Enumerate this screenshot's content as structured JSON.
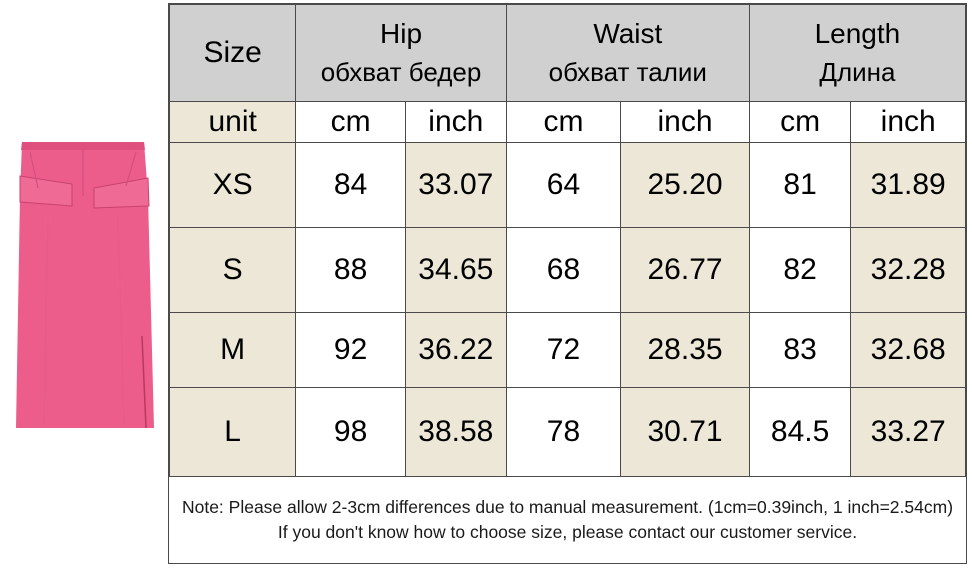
{
  "table": {
    "header": {
      "size": "Size",
      "groups": [
        {
          "en": "Hip",
          "ru": "обхват бедер"
        },
        {
          "en": "Waist",
          "ru": "обхват талии"
        },
        {
          "en": "Length",
          "ru": "Длина"
        }
      ]
    },
    "units": {
      "label": "unit",
      "cells": [
        "cm",
        "inch",
        "cm",
        "inch",
        "cm",
        "inch"
      ]
    },
    "rows": [
      {
        "size": "XS",
        "values": [
          "84",
          "33.07",
          "64",
          "25.20",
          "81",
          "31.89"
        ]
      },
      {
        "size": "S",
        "values": [
          "88",
          "34.65",
          "68",
          "26.77",
          "82",
          "32.28"
        ]
      },
      {
        "size": "M",
        "values": [
          "92",
          "36.22",
          "72",
          "28.35",
          "83",
          "32.68"
        ]
      },
      {
        "size": "L",
        "values": [
          "98",
          "38.58",
          "78",
          "30.71",
          "84.5",
          "33.27"
        ]
      }
    ]
  },
  "note": "Note: Please allow 2-3cm differences due to manual measurement. (1cm=0.39inch, 1 inch=2.54cm)  If you don't know how to choose size, please contact our customer service.",
  "colors": {
    "header_gray": "#d0d0d0",
    "beige": "#ece7d6",
    "skirt_pink": "#ec5d8b"
  }
}
